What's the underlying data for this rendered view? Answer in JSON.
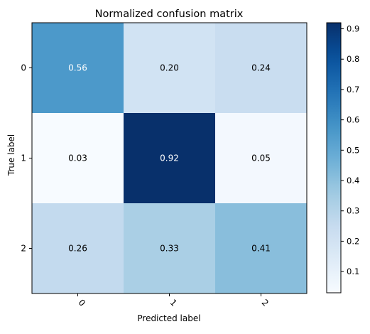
{
  "chart_data": {
    "type": "heatmap",
    "title": "Normalized confusion matrix",
    "xlabel": "Predicted label",
    "ylabel": "True label",
    "x_categories": [
      "0",
      "1",
      "2"
    ],
    "y_categories": [
      "0",
      "1",
      "2"
    ],
    "values": [
      [
        0.56,
        0.2,
        0.24
      ],
      [
        0.03,
        0.92,
        0.05
      ],
      [
        0.26,
        0.33,
        0.41
      ]
    ],
    "cell_labels": [
      [
        "0.56",
        "0.20",
        "0.24"
      ],
      [
        "0.03",
        "0.92",
        "0.05"
      ],
      [
        "0.26",
        "0.33",
        "0.41"
      ]
    ],
    "colorbar": {
      "range": [
        0.03,
        0.92
      ],
      "ticks": [
        0.1,
        0.2,
        0.3,
        0.4,
        0.5,
        0.6,
        0.7,
        0.8,
        0.9
      ],
      "tick_labels": [
        "0.1",
        "0.2",
        "0.3",
        "0.4",
        "0.5",
        "0.6",
        "0.7",
        "0.8",
        "0.9"
      ]
    },
    "colormap": "Blues",
    "grid": false,
    "x_tick_rotation_deg": 45
  }
}
